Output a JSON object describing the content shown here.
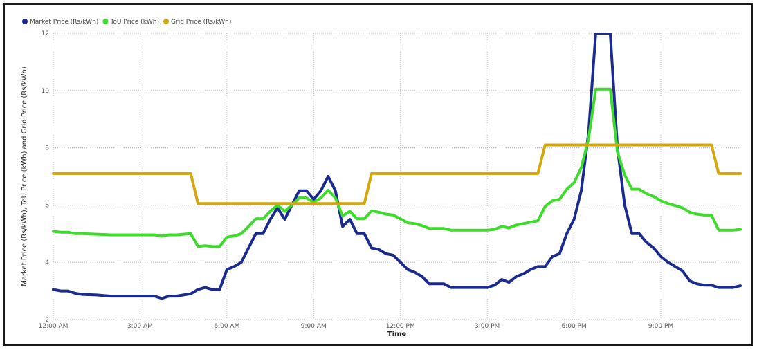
{
  "chart_data": {
    "type": "line",
    "xlabel": "Time",
    "ylabel": "Market Price (Rs/kWh), ToU Price (kWh) and Grid Price (Rs/kWh)",
    "x_ticks": [
      "12:00 AM",
      "3:00 AM",
      "6:00 AM",
      "9:00 AM",
      "12:00 PM",
      "3:00 PM",
      "6:00 PM",
      "9:00 PM"
    ],
    "y_ticks": [
      2,
      4,
      6,
      8,
      10,
      12
    ],
    "xlim": [
      0,
      23.75
    ],
    "ylim": [
      2,
      12
    ],
    "grid": true,
    "legend_position": "top-left",
    "series": [
      {
        "name": "Market Price (Rs/kWh)",
        "color": "#1a2a8f",
        "points": [
          [
            0,
            3.05
          ],
          [
            0.25,
            3.0
          ],
          [
            0.5,
            3.0
          ],
          [
            0.75,
            2.92
          ],
          [
            1,
            2.88
          ],
          [
            1.5,
            2.86
          ],
          [
            2,
            2.82
          ],
          [
            2.5,
            2.82
          ],
          [
            3,
            2.82
          ],
          [
            3.5,
            2.82
          ],
          [
            3.75,
            2.74
          ],
          [
            4,
            2.82
          ],
          [
            4.25,
            2.82
          ],
          [
            4.5,
            2.86
          ],
          [
            4.75,
            2.9
          ],
          [
            5,
            3.05
          ],
          [
            5.25,
            3.12
          ],
          [
            5.5,
            3.05
          ],
          [
            5.75,
            3.05
          ],
          [
            6,
            3.75
          ],
          [
            6.25,
            3.85
          ],
          [
            6.5,
            4.0
          ],
          [
            6.75,
            4.5
          ],
          [
            7,
            5.0
          ],
          [
            7.25,
            5.0
          ],
          [
            7.5,
            5.5
          ],
          [
            7.75,
            5.9
          ],
          [
            8,
            5.5
          ],
          [
            8.25,
            6.0
          ],
          [
            8.5,
            6.5
          ],
          [
            8.75,
            6.5
          ],
          [
            9,
            6.2
          ],
          [
            9.25,
            6.5
          ],
          [
            9.5,
            7.0
          ],
          [
            9.75,
            6.5
          ],
          [
            10,
            5.25
          ],
          [
            10.25,
            5.5
          ],
          [
            10.5,
            5.0
          ],
          [
            10.75,
            5.0
          ],
          [
            11,
            4.5
          ],
          [
            11.25,
            4.45
          ],
          [
            11.5,
            4.3
          ],
          [
            11.75,
            4.25
          ],
          [
            12,
            4.0
          ],
          [
            12.25,
            3.75
          ],
          [
            12.5,
            3.65
          ],
          [
            12.75,
            3.5
          ],
          [
            13,
            3.25
          ],
          [
            13.25,
            3.25
          ],
          [
            13.5,
            3.25
          ],
          [
            13.75,
            3.12
          ],
          [
            14,
            3.12
          ],
          [
            14.5,
            3.12
          ],
          [
            15,
            3.12
          ],
          [
            15.25,
            3.2
          ],
          [
            15.5,
            3.4
          ],
          [
            15.75,
            3.3
          ],
          [
            16,
            3.5
          ],
          [
            16.25,
            3.6
          ],
          [
            16.5,
            3.75
          ],
          [
            16.75,
            3.85
          ],
          [
            17,
            3.85
          ],
          [
            17.25,
            4.2
          ],
          [
            17.5,
            4.3
          ],
          [
            17.75,
            5.0
          ],
          [
            18,
            5.5
          ],
          [
            18.25,
            6.5
          ],
          [
            18.5,
            8.5
          ],
          [
            18.75,
            12.0
          ],
          [
            19,
            12.0
          ],
          [
            19.25,
            12.0
          ],
          [
            19.5,
            8.0
          ],
          [
            19.75,
            6.0
          ],
          [
            20,
            5.0
          ],
          [
            20.25,
            5.0
          ],
          [
            20.5,
            4.7
          ],
          [
            20.75,
            4.5
          ],
          [
            21,
            4.2
          ],
          [
            21.25,
            4.0
          ],
          [
            21.5,
            3.85
          ],
          [
            21.75,
            3.7
          ],
          [
            22,
            3.35
          ],
          [
            22.25,
            3.25
          ],
          [
            22.5,
            3.2
          ],
          [
            22.75,
            3.2
          ],
          [
            23,
            3.12
          ],
          [
            23.25,
            3.12
          ],
          [
            23.5,
            3.12
          ],
          [
            23.75,
            3.18
          ]
        ]
      },
      {
        "name": "ToU Price (kWh)",
        "color": "#3ddc2a",
        "points": [
          [
            0,
            5.08
          ],
          [
            0.25,
            5.05
          ],
          [
            0.5,
            5.05
          ],
          [
            0.75,
            5.0
          ],
          [
            1,
            5.0
          ],
          [
            1.5,
            4.98
          ],
          [
            2,
            4.96
          ],
          [
            2.5,
            4.96
          ],
          [
            3,
            4.96
          ],
          [
            3.5,
            4.96
          ],
          [
            3.75,
            4.92
          ],
          [
            4,
            4.96
          ],
          [
            4.25,
            4.96
          ],
          [
            4.5,
            4.98
          ],
          [
            4.75,
            5.0
          ],
          [
            5,
            4.55
          ],
          [
            5.25,
            4.58
          ],
          [
            5.5,
            4.55
          ],
          [
            5.75,
            4.55
          ],
          [
            6,
            4.88
          ],
          [
            6.25,
            4.92
          ],
          [
            6.5,
            5.0
          ],
          [
            6.75,
            5.25
          ],
          [
            7,
            5.52
          ],
          [
            7.25,
            5.52
          ],
          [
            7.5,
            5.78
          ],
          [
            7.75,
            6.0
          ],
          [
            8,
            5.78
          ],
          [
            8.25,
            6.0
          ],
          [
            8.5,
            6.25
          ],
          [
            8.75,
            6.25
          ],
          [
            9,
            6.1
          ],
          [
            9.25,
            6.25
          ],
          [
            9.5,
            6.52
          ],
          [
            9.75,
            6.25
          ],
          [
            10,
            5.62
          ],
          [
            10.25,
            5.78
          ],
          [
            10.5,
            5.52
          ],
          [
            10.75,
            5.52
          ],
          [
            11,
            5.8
          ],
          [
            11.25,
            5.75
          ],
          [
            11.5,
            5.68
          ],
          [
            11.75,
            5.65
          ],
          [
            12,
            5.52
          ],
          [
            12.25,
            5.38
          ],
          [
            12.5,
            5.35
          ],
          [
            12.75,
            5.28
          ],
          [
            13,
            5.18
          ],
          [
            13.25,
            5.18
          ],
          [
            13.5,
            5.18
          ],
          [
            13.75,
            5.12
          ],
          [
            14,
            5.12
          ],
          [
            14.5,
            5.12
          ],
          [
            15,
            5.12
          ],
          [
            15.25,
            5.15
          ],
          [
            15.5,
            5.25
          ],
          [
            15.75,
            5.2
          ],
          [
            16,
            5.3
          ],
          [
            16.25,
            5.35
          ],
          [
            16.5,
            5.4
          ],
          [
            16.75,
            5.45
          ],
          [
            17,
            5.95
          ],
          [
            17.25,
            6.15
          ],
          [
            17.5,
            6.2
          ],
          [
            17.75,
            6.55
          ],
          [
            18,
            6.78
          ],
          [
            18.25,
            7.3
          ],
          [
            18.5,
            8.3
          ],
          [
            18.75,
            10.05
          ],
          [
            19,
            10.05
          ],
          [
            19.25,
            10.05
          ],
          [
            19.5,
            7.85
          ],
          [
            19.75,
            7.05
          ],
          [
            20,
            6.55
          ],
          [
            20.25,
            6.55
          ],
          [
            20.5,
            6.4
          ],
          [
            20.75,
            6.3
          ],
          [
            21,
            6.15
          ],
          [
            21.25,
            6.05
          ],
          [
            21.5,
            5.98
          ],
          [
            21.75,
            5.9
          ],
          [
            22,
            5.75
          ],
          [
            22.25,
            5.68
          ],
          [
            22.5,
            5.65
          ],
          [
            22.75,
            5.65
          ],
          [
            23,
            5.12
          ],
          [
            23.25,
            5.12
          ],
          [
            23.5,
            5.12
          ],
          [
            23.75,
            5.15
          ]
        ]
      },
      {
        "name": "Grid Price (Rs/kWh)",
        "color": "#d4a80c",
        "points": [
          [
            0,
            7.1
          ],
          [
            4.75,
            7.1
          ],
          [
            5,
            6.05
          ],
          [
            10.75,
            6.05
          ],
          [
            11,
            7.1
          ],
          [
            16.75,
            7.1
          ],
          [
            17,
            8.1
          ],
          [
            22.75,
            8.1
          ],
          [
            23,
            7.1
          ],
          [
            23.75,
            7.1
          ]
        ]
      }
    ]
  }
}
